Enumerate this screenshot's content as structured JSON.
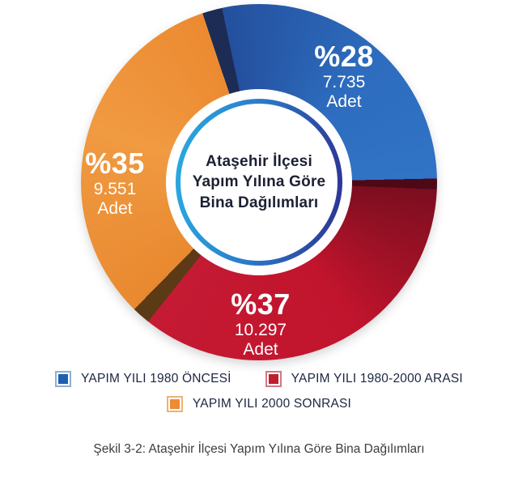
{
  "chart_data": {
    "type": "pie",
    "subtype": "donut",
    "title": "Ataşehir İlçesi Yapım Yılına Göre Bina Dağılımları",
    "center_label_lines": [
      "Ataşehir İlçesi",
      "Yapım Yılına Göre",
      "Bina Dağılımları"
    ],
    "unit_label": "Adet",
    "legend_position": "bottom",
    "series": [
      {
        "name": "YAPIM YILI 1980 ÖNCESİ",
        "percent": 28,
        "percent_label": "%28",
        "count": 7735,
        "count_label": "7.735",
        "color": "#2a6cbd"
      },
      {
        "name": "YAPIM YILI 1980-2000 ARASI",
        "percent": 37,
        "percent_label": "%37",
        "count": 10297,
        "count_label": "10.297",
        "color": "#c0152d"
      },
      {
        "name": "YAPIM YILI 2000 SONRASI",
        "percent": 35,
        "percent_label": "%35",
        "count": 9551,
        "count_label": "9.551",
        "color": "#ee8b33"
      }
    ],
    "accent_ring_gradient": [
      "#29abe2",
      "#2e3192"
    ],
    "shadow_wedge_colors": [
      "#1d2c55",
      "#4d0916",
      "#5c3a16"
    ]
  },
  "caption": "Şekil 3-2: Ataşehir İlçesi Yapım Yılına Göre Bina Dağılımları"
}
